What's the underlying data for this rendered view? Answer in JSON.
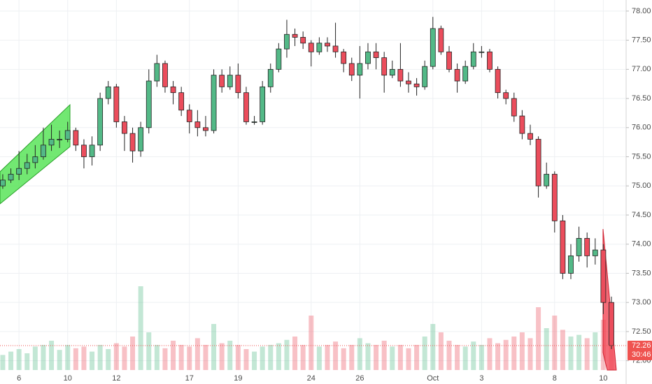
{
  "chart_data": {
    "type": "candlestick",
    "x": [
      0,
      1,
      2,
      3,
      4,
      5,
      6,
      7,
      8,
      9,
      10,
      11,
      12,
      13,
      14,
      15,
      16,
      17,
      18,
      19,
      20,
      21,
      22,
      23,
      24,
      25,
      26,
      27,
      28,
      29,
      30,
      31,
      32,
      33,
      34,
      35,
      36,
      37,
      38,
      39,
      40,
      41,
      42,
      43,
      44,
      45,
      46,
      47,
      48,
      49,
      50,
      51,
      52,
      53,
      54,
      55,
      56,
      57,
      58,
      59,
      60,
      61,
      62,
      63,
      64,
      65,
      66,
      67,
      68,
      69,
      70,
      71,
      72,
      73,
      74,
      75
    ],
    "ohlc": [
      [
        75.0,
        75.2,
        74.95,
        75.1
      ],
      [
        75.1,
        75.3,
        75.05,
        75.2
      ],
      [
        75.2,
        75.6,
        75.1,
        75.3
      ],
      [
        75.3,
        75.55,
        75.2,
        75.4
      ],
      [
        75.4,
        75.7,
        75.3,
        75.5
      ],
      [
        75.5,
        76.0,
        75.45,
        75.7
      ],
      [
        75.7,
        76.05,
        75.6,
        75.8
      ],
      [
        75.8,
        75.95,
        75.65,
        75.8
      ],
      [
        75.8,
        76.1,
        75.75,
        75.95
      ],
      [
        75.95,
        76.0,
        75.6,
        75.7
      ],
      [
        75.7,
        75.8,
        75.3,
        75.5
      ],
      [
        75.5,
        75.85,
        75.35,
        75.7
      ],
      [
        75.7,
        76.6,
        75.6,
        76.5
      ],
      [
        76.5,
        76.8,
        76.4,
        76.7
      ],
      [
        76.7,
        76.75,
        76.0,
        76.1
      ],
      [
        76.1,
        76.2,
        75.6,
        75.9
      ],
      [
        75.9,
        76.0,
        75.4,
        75.6
      ],
      [
        75.6,
        76.1,
        75.5,
        76.0
      ],
      [
        76.0,
        77.0,
        75.9,
        76.8
      ],
      [
        76.8,
        77.25,
        76.7,
        77.1
      ],
      [
        77.1,
        77.15,
        76.6,
        76.7
      ],
      [
        76.7,
        76.8,
        76.4,
        76.6
      ],
      [
        76.6,
        76.7,
        76.2,
        76.3
      ],
      [
        76.3,
        76.4,
        75.9,
        76.1
      ],
      [
        76.1,
        76.3,
        75.85,
        76.0
      ],
      [
        76.0,
        76.2,
        75.85,
        75.95
      ],
      [
        75.95,
        77.0,
        75.9,
        76.9
      ],
      [
        76.9,
        77.0,
        76.6,
        76.7
      ],
      [
        76.7,
        77.05,
        76.65,
        76.9
      ],
      [
        76.9,
        77.1,
        76.5,
        76.6
      ],
      [
        76.6,
        76.7,
        76.05,
        76.1
      ],
      [
        76.1,
        76.2,
        76.05,
        76.1
      ],
      [
        76.1,
        76.8,
        76.05,
        76.7
      ],
      [
        76.7,
        77.1,
        76.6,
        77.0
      ],
      [
        77.0,
        77.45,
        76.95,
        77.35
      ],
      [
        77.35,
        77.85,
        77.2,
        77.6
      ],
      [
        77.6,
        77.7,
        77.4,
        77.55
      ],
      [
        77.55,
        77.65,
        77.35,
        77.45
      ],
      [
        77.45,
        77.5,
        77.05,
        77.3
      ],
      [
        77.3,
        77.55,
        77.25,
        77.45
      ],
      [
        77.45,
        77.55,
        77.3,
        77.4
      ],
      [
        77.4,
        77.8,
        77.2,
        77.3
      ],
      [
        77.3,
        77.35,
        76.95,
        77.1
      ],
      [
        77.1,
        77.2,
        76.8,
        76.9
      ],
      [
        76.9,
        77.4,
        76.5,
        77.1
      ],
      [
        77.1,
        77.45,
        77.0,
        77.3
      ],
      [
        77.3,
        77.45,
        77.0,
        77.2
      ],
      [
        77.2,
        77.3,
        76.6,
        76.9
      ],
      [
        76.9,
        77.15,
        76.85,
        77.0
      ],
      [
        77.0,
        77.45,
        76.7,
        76.8
      ],
      [
        76.8,
        76.95,
        76.6,
        76.75
      ],
      [
        76.75,
        76.85,
        76.55,
        76.7
      ],
      [
        76.7,
        77.15,
        76.65,
        77.05
      ],
      [
        77.05,
        77.9,
        77.0,
        77.7
      ],
      [
        77.7,
        77.75,
        77.25,
        77.3
      ],
      [
        77.3,
        77.4,
        76.95,
        77.0
      ],
      [
        77.0,
        77.1,
        76.6,
        76.8
      ],
      [
        76.8,
        77.15,
        76.75,
        77.05
      ],
      [
        77.05,
        77.45,
        77.0,
        77.3
      ],
      [
        77.3,
        77.4,
        77.2,
        77.3
      ],
      [
        77.3,
        77.35,
        76.95,
        77.0
      ],
      [
        77.0,
        77.05,
        76.5,
        76.6
      ],
      [
        76.6,
        76.65,
        76.4,
        76.5
      ],
      [
        76.5,
        76.6,
        76.1,
        76.2
      ],
      [
        76.2,
        76.3,
        75.8,
        75.9
      ],
      [
        75.9,
        76.05,
        75.7,
        75.8
      ],
      [
        75.8,
        75.85,
        74.8,
        75.0
      ],
      [
        75.0,
        75.4,
        74.95,
        75.2
      ],
      [
        75.2,
        75.25,
        74.2,
        74.4
      ],
      [
        74.4,
        74.5,
        73.4,
        73.5
      ],
      [
        73.5,
        74.0,
        73.4,
        73.8
      ],
      [
        73.8,
        74.3,
        73.7,
        74.1
      ],
      [
        74.1,
        74.2,
        73.6,
        73.8
      ],
      [
        73.8,
        74.1,
        73.65,
        73.9
      ],
      [
        73.9,
        74.0,
        72.8,
        73.0
      ],
      [
        73.0,
        73.1,
        72.2,
        72.26
      ]
    ],
    "volume": [
      18,
      22,
      25,
      20,
      28,
      30,
      35,
      24,
      30,
      26,
      28,
      22,
      30,
      25,
      32,
      28,
      40,
      100,
      45,
      30,
      26,
      35,
      30,
      28,
      38,
      30,
      55,
      32,
      35,
      30,
      25,
      22,
      28,
      30,
      32,
      36,
      40,
      30,
      65,
      28,
      30,
      34,
      26,
      30,
      38,
      32,
      30,
      35,
      28,
      30,
      26,
      30,
      40,
      55,
      45,
      35,
      30,
      28,
      34,
      30,
      38,
      32,
      36,
      40,
      45,
      38,
      75,
      50,
      65,
      48,
      40,
      42,
      38,
      45,
      60,
      35
    ],
    "up_color": "#53b987",
    "down_color": "#eb4d5c",
    "xlim": [
      -0.34,
      76.81
    ],
    "ylim": [
      71.84,
      78.19
    ],
    "y2lim": [
      0,
      100
    ],
    "xticks": [
      {
        "value": 2,
        "label": "6"
      },
      {
        "value": 8,
        "label": "10"
      },
      {
        "value": 14,
        "label": "12"
      },
      {
        "value": 23,
        "label": "17"
      },
      {
        "value": 29,
        "label": "19"
      },
      {
        "value": 38,
        "label": "24"
      },
      {
        "value": 44,
        "label": "26"
      },
      {
        "value": 53,
        "label": "Oct"
      },
      {
        "value": 59,
        "label": "3"
      },
      {
        "value": 68,
        "label": "8"
      },
      {
        "value": 74,
        "label": "10"
      }
    ],
    "yticks": [
      {
        "value": 72,
        "label": "72.00"
      },
      {
        "value": 72.5,
        "label": "72.50"
      },
      {
        "value": 73,
        "label": "73.00"
      },
      {
        "value": 73.5,
        "label": "73.50"
      },
      {
        "value": 74,
        "label": "74.00"
      },
      {
        "value": 74.5,
        "label": "74.50"
      },
      {
        "value": 75,
        "label": "75.00"
      },
      {
        "value": 75.5,
        "label": "75.50"
      },
      {
        "value": 76,
        "label": "76.00"
      },
      {
        "value": 76.5,
        "label": "76.50"
      },
      {
        "value": 77,
        "label": "77.00"
      },
      {
        "value": 77.5,
        "label": "77.50"
      },
      {
        "value": 78,
        "label": "78.00"
      }
    ],
    "grid": true,
    "last_price": {
      "value": 72.26,
      "label": "72.26"
    },
    "countdown": "30:46"
  }
}
